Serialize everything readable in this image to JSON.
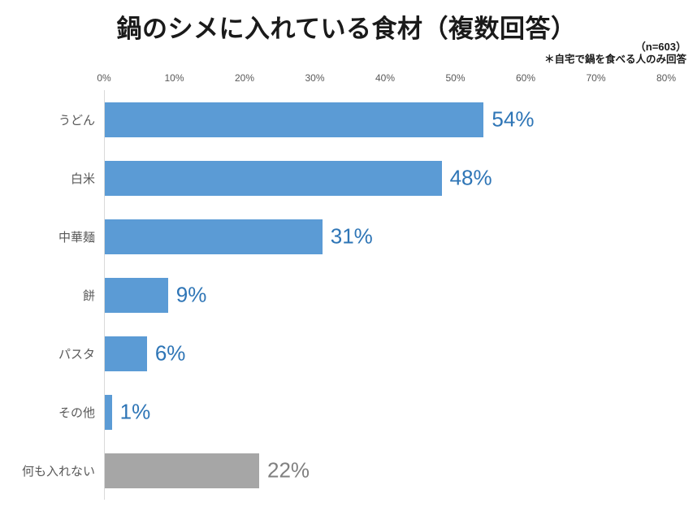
{
  "title": "鍋のシメに入れている食材（複数回答）",
  "notes": {
    "sample_size": "（n=603）",
    "condition": "＊自宅で鍋を食べる人のみ回答"
  },
  "colors": {
    "bar_blue": "#5B9BD5",
    "bar_gray": "#A6A6A6",
    "value_label_blue": "#2E75B6",
    "value_label_gray": "#808080",
    "axis_text": "#595959",
    "axis_line": "#D9D9D9",
    "title_text": "#1A1A1A"
  },
  "chart_data": {
    "type": "bar",
    "orientation": "horizontal",
    "title": "鍋のシメに入れている食材（複数回答）",
    "subtitle": "（n=603）＊自宅で鍋を食べる人のみ回答",
    "categories": [
      "うどん",
      "白米",
      "中華麺",
      "餅",
      "パスタ",
      "その他",
      "何も入れない"
    ],
    "values": [
      54,
      48,
      31,
      9,
      6,
      1,
      22
    ],
    "value_labels": [
      "54%",
      "48%",
      "31%",
      "9%",
      "6%",
      "1%",
      "22%"
    ],
    "bar_colors": [
      "#5B9BD5",
      "#5B9BD5",
      "#5B9BD5",
      "#5B9BD5",
      "#5B9BD5",
      "#5B9BD5",
      "#A6A6A6"
    ],
    "value_label_colors": [
      "#2E75B6",
      "#2E75B6",
      "#2E75B6",
      "#2E75B6",
      "#2E75B6",
      "#2E75B6",
      "#808080"
    ],
    "xlabel": "",
    "ylabel": "",
    "xlim": [
      0,
      80
    ],
    "x_tick_labels": [
      "0%",
      "10%",
      "20%",
      "30%",
      "40%",
      "50%",
      "60%",
      "70%",
      "80%"
    ],
    "grid": false,
    "legend": false,
    "tick_position": "top"
  }
}
